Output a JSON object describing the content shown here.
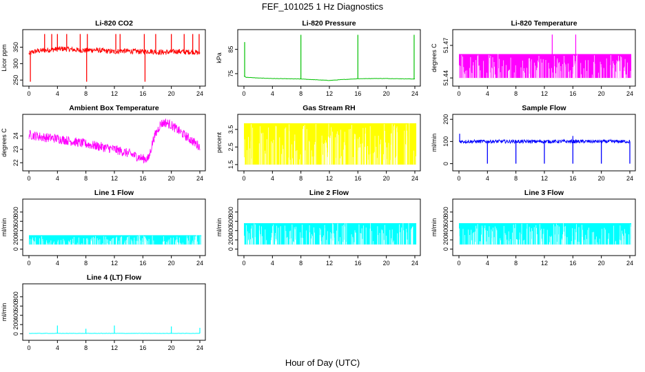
{
  "figure": {
    "title": "FEF_101025  1 Hz Diagnostics",
    "xlabel": "Hour of Day (UTC)"
  },
  "chart_data": [
    {
      "type": "line",
      "title": "Li-820 CO2",
      "ylabel": "Licor ppm",
      "color": "#ff0000",
      "xlim": [
        0,
        24
      ],
      "xticks": [
        0,
        4,
        8,
        12,
        16,
        20,
        24
      ],
      "ylim": [
        240,
        395
      ],
      "yticks": [
        250,
        300,
        350
      ],
      "series": [
        {
          "x": [
            0,
            0.5,
            1,
            2,
            3,
            4,
            5,
            6,
            7,
            8,
            9,
            10,
            11,
            12,
            13,
            14,
            15,
            16,
            17,
            18,
            19,
            20,
            21,
            22,
            23,
            24
          ],
          "y": [
            330,
            335,
            338,
            340,
            342,
            344,
            345,
            343,
            341,
            340,
            342,
            340,
            338,
            336,
            339,
            338,
            337,
            336,
            338,
            335,
            334,
            336,
            337,
            335,
            336,
            332
          ],
          "band": 8
        }
      ],
      "spikes_up": [
        2.2,
        3.2,
        4.0,
        5.3,
        7.2,
        8.2,
        12.2,
        12.8,
        16.2,
        17.8,
        20.0,
        21.8,
        23.0,
        23.9
      ],
      "spikes_down": [
        0.2,
        16.3,
        8.1
      ]
    },
    {
      "type": "line",
      "title": "Li-820 Pressure",
      "ylabel": "kPa",
      "color": "#00c000",
      "xlim": [
        0,
        24
      ],
      "xticks": [
        0,
        4,
        8,
        12,
        16,
        20,
        24
      ],
      "ylim": [
        71,
        92
      ],
      "yticks": [
        75,
        85
      ],
      "series": [
        {
          "x": [
            0,
            0.3,
            2,
            4,
            6,
            8,
            10,
            12,
            14,
            16,
            18,
            20,
            22,
            24
          ],
          "y": [
            74,
            73.5,
            73.2,
            73.0,
            72.9,
            72.8,
            72.5,
            72.2,
            72.6,
            72.9,
            73.0,
            73.0,
            72.9,
            72.8
          ]
        }
      ],
      "spikes": [
        {
          "x": 8.0,
          "y": 91
        },
        {
          "x": 16.0,
          "y": 91
        },
        {
          "x": 23.9,
          "y": 91
        },
        {
          "x": 0.1,
          "y": 88
        }
      ]
    },
    {
      "type": "line",
      "title": "Li-820 Temperature",
      "ylabel": "degrees C",
      "color": "#ff00ff",
      "xlim": [
        0,
        24
      ],
      "xticks": [
        0,
        4,
        8,
        12,
        16,
        20,
        24
      ],
      "ylim": [
        51.435,
        51.482
      ],
      "yticks": [
        51.44,
        51.47
      ],
      "series": [
        {
          "low": 51.44,
          "high": 51.462,
          "x_range": [
            0,
            24.2
          ]
        }
      ],
      "spikes": [
        {
          "x": 13.1,
          "y": 51.48
        },
        {
          "x": 16.4,
          "y": 51.48
        }
      ]
    },
    {
      "type": "line",
      "title": "Ambient Box Temperature",
      "ylabel": "degrees C",
      "color": "#ff00ff",
      "xlim": [
        0,
        24
      ],
      "xticks": [
        0,
        4,
        8,
        12,
        16,
        20,
        24
      ],
      "ylim": [
        21.6,
        25.4
      ],
      "yticks": [
        22,
        23,
        24
      ],
      "series": [
        {
          "x": [
            0,
            2,
            4,
            6,
            8,
            10,
            12,
            14,
            16,
            16.8,
            17.5,
            18.5,
            19.2,
            20,
            21,
            22,
            23,
            24
          ],
          "y": [
            24.1,
            23.9,
            23.8,
            23.6,
            23.4,
            23.2,
            23.0,
            22.7,
            22.3,
            22.3,
            23.8,
            24.9,
            25.0,
            24.8,
            24.4,
            24.0,
            23.6,
            23.2
          ],
          "band": 0.35
        }
      ]
    },
    {
      "type": "line",
      "title": "Gas Stream RH",
      "ylabel": "percent",
      "color": "#ffff00",
      "xlim": [
        0,
        24
      ],
      "xticks": [
        0,
        4,
        8,
        12,
        16,
        20,
        24
      ],
      "ylim": [
        1.3,
        4.2
      ],
      "yticks": [
        1.5,
        2.5,
        3.5
      ],
      "series": [
        {
          "high": 3.85,
          "low": 1.5,
          "x_range": [
            0,
            24.2
          ]
        }
      ]
    },
    {
      "type": "line",
      "title": "Sample Flow",
      "ylabel": "ml/min",
      "color": "#0000ff",
      "xlim": [
        0,
        24
      ],
      "xticks": [
        0,
        4,
        8,
        12,
        16,
        20,
        24
      ],
      "ylim": [
        -20,
        210
      ],
      "yticks": [
        0,
        100,
        200
      ],
      "series": [
        {
          "x": [
            0,
            24
          ],
          "y": [
            100,
            100
          ],
          "band": 8
        }
      ],
      "dips": [
        4.0,
        8.0,
        12.0,
        16.0,
        20.0,
        24.0
      ],
      "spikes": [
        {
          "x": 0.1,
          "y": 135
        },
        {
          "x": 16.0,
          "y": 125
        }
      ]
    },
    {
      "type": "line",
      "title": "Line 1 Flow",
      "ylabel": "ml/min",
      "color": "#00ffff",
      "xlim": [
        0,
        24
      ],
      "xticks": [
        0,
        4,
        8,
        12,
        16,
        20,
        24
      ],
      "ylim": [
        -80,
        1020
      ],
      "yticks": [
        0,
        200,
        400,
        600,
        800
      ],
      "series": [
        {
          "high": 300,
          "low": 100,
          "x_range": [
            0,
            24.2
          ]
        }
      ]
    },
    {
      "type": "line",
      "title": "Line 2 Flow",
      "ylabel": "ml/min",
      "color": "#00ffff",
      "xlim": [
        0,
        24
      ],
      "xticks": [
        0,
        4,
        8,
        12,
        16,
        20,
        24
      ],
      "ylim": [
        -80,
        1020
      ],
      "yticks": [
        0,
        200,
        400,
        600,
        800
      ],
      "series": [
        {
          "high": 560,
          "low": 100,
          "x_range": [
            0,
            24.2
          ]
        }
      ]
    },
    {
      "type": "line",
      "title": "Line 3 Flow",
      "ylabel": "ml/min",
      "color": "#00ffff",
      "xlim": [
        0,
        24
      ],
      "xticks": [
        0,
        4,
        8,
        12,
        16,
        20,
        24
      ],
      "ylim": [
        -80,
        1020
      ],
      "yticks": [
        0,
        200,
        400,
        600,
        800
      ],
      "series": [
        {
          "high": 560,
          "low": 100,
          "x_range": [
            0,
            24.2
          ]
        }
      ]
    },
    {
      "type": "line",
      "title": "Line 4 (LT) Flow",
      "ylabel": "ml/min",
      "color": "#00ffff",
      "xlim": [
        0,
        24
      ],
      "xticks": [
        0,
        4,
        8,
        12,
        16,
        20,
        24
      ],
      "ylim": [
        -80,
        1020
      ],
      "yticks": [
        0,
        200,
        400,
        600,
        800
      ],
      "series": [
        {
          "x": [
            0,
            24
          ],
          "y": [
            10,
            10
          ]
        }
      ],
      "spikes": [
        {
          "x": 4.0,
          "y": 180
        },
        {
          "x": 8.0,
          "y": 110
        },
        {
          "x": 12.0,
          "y": 180
        },
        {
          "x": 20.0,
          "y": 160
        },
        {
          "x": 24.0,
          "y": 130
        }
      ]
    }
  ]
}
